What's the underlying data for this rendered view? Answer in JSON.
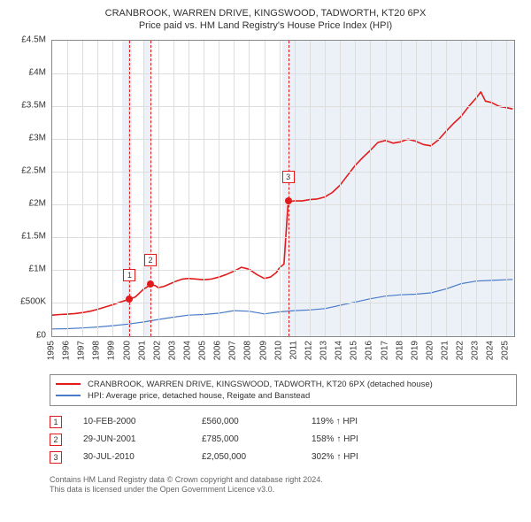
{
  "title_line1": "CRANBROOK, WARREN DRIVE, KINGSWOOD, TADWORTH, KT20 6PX",
  "title_line2": "Price paid vs. HM Land Registry's House Price Index (HPI)",
  "chart": {
    "type": "line",
    "background_color": "#ffffff",
    "grid_color": "#dddddd",
    "border_color": "#888888",
    "shade_color": "#e0e8f4",
    "x": {
      "min": 1995,
      "max": 2025.5,
      "ticks": [
        1995,
        1996,
        1997,
        1998,
        1999,
        2000,
        2001,
        2002,
        2003,
        2004,
        2005,
        2006,
        2007,
        2008,
        2009,
        2010,
        2011,
        2012,
        2013,
        2014,
        2015,
        2016,
        2017,
        2018,
        2019,
        2020,
        2021,
        2022,
        2023,
        2024,
        2025
      ]
    },
    "y": {
      "min": 0,
      "max": 4500000,
      "ticks": [
        0,
        500000,
        1000000,
        1500000,
        2000000,
        2500000,
        3000000,
        3500000,
        4000000,
        4500000
      ],
      "tick_labels": [
        "£0",
        "£500K",
        "£1M",
        "£1.5M",
        "£2M",
        "£2.5M",
        "£3M",
        "£3.5M",
        "£4M",
        "£4.5M"
      ]
    },
    "shaded_ranges": [
      [
        1999.6,
        2000.25
      ],
      [
        2001.0,
        2001.55
      ],
      [
        2010.2,
        2025.5
      ]
    ],
    "tick_label_fontsize": 10,
    "series": [
      {
        "name": "property",
        "label": "CRANBROOK, WARREN DRIVE, KINGSWOOD, TADWORTH, KT20 6PX (detached house)",
        "color": "#e11b1b",
        "width": 1.6,
        "points": [
          [
            1995.0,
            320000
          ],
          [
            1995.5,
            330000
          ],
          [
            1996.0,
            335000
          ],
          [
            1996.5,
            345000
          ],
          [
            1997.0,
            360000
          ],
          [
            1997.5,
            380000
          ],
          [
            1998.0,
            410000
          ],
          [
            1998.5,
            445000
          ],
          [
            1999.0,
            480000
          ],
          [
            1999.5,
            520000
          ],
          [
            2000.0,
            555000
          ],
          [
            2000.11,
            560000
          ],
          [
            2000.5,
            600000
          ],
          [
            2001.0,
            710000
          ],
          [
            2001.49,
            785000
          ],
          [
            2001.8,
            770000
          ],
          [
            2002.0,
            740000
          ],
          [
            2002.4,
            760000
          ],
          [
            2002.8,
            800000
          ],
          [
            2003.2,
            840000
          ],
          [
            2003.6,
            870000
          ],
          [
            2004.0,
            880000
          ],
          [
            2004.5,
            870000
          ],
          [
            2005.0,
            860000
          ],
          [
            2005.5,
            870000
          ],
          [
            2006.0,
            900000
          ],
          [
            2006.5,
            940000
          ],
          [
            2007.0,
            990000
          ],
          [
            2007.5,
            1050000
          ],
          [
            2008.0,
            1020000
          ],
          [
            2008.5,
            940000
          ],
          [
            2009.0,
            880000
          ],
          [
            2009.4,
            900000
          ],
          [
            2009.8,
            970000
          ],
          [
            2010.0,
            1040000
          ],
          [
            2010.3,
            1100000
          ],
          [
            2010.55,
            1950000
          ],
          [
            2010.58,
            2050000
          ],
          [
            2011.0,
            2060000
          ],
          [
            2011.5,
            2060000
          ],
          [
            2012.0,
            2080000
          ],
          [
            2012.5,
            2090000
          ],
          [
            2013.0,
            2120000
          ],
          [
            2013.5,
            2190000
          ],
          [
            2014.0,
            2300000
          ],
          [
            2014.5,
            2450000
          ],
          [
            2015.0,
            2600000
          ],
          [
            2015.5,
            2720000
          ],
          [
            2016.0,
            2830000
          ],
          [
            2016.5,
            2950000
          ],
          [
            2017.0,
            2980000
          ],
          [
            2017.5,
            2940000
          ],
          [
            2018.0,
            2960000
          ],
          [
            2018.5,
            3000000
          ],
          [
            2019.0,
            2970000
          ],
          [
            2019.5,
            2920000
          ],
          [
            2020.0,
            2900000
          ],
          [
            2020.5,
            2990000
          ],
          [
            2021.0,
            3120000
          ],
          [
            2021.5,
            3240000
          ],
          [
            2022.0,
            3350000
          ],
          [
            2022.5,
            3500000
          ],
          [
            2023.0,
            3630000
          ],
          [
            2023.3,
            3720000
          ],
          [
            2023.6,
            3580000
          ],
          [
            2024.0,
            3560000
          ],
          [
            2024.5,
            3500000
          ],
          [
            2025.0,
            3480000
          ],
          [
            2025.4,
            3460000
          ]
        ]
      },
      {
        "name": "hpi",
        "label": "HPI: Average price, detached house, Reigate and Banstead",
        "color": "#4a7bc8",
        "width": 1.2,
        "points": [
          [
            1995.0,
            110000
          ],
          [
            1996.0,
            115000
          ],
          [
            1997.0,
            125000
          ],
          [
            1998.0,
            140000
          ],
          [
            1999.0,
            160000
          ],
          [
            2000.0,
            185000
          ],
          [
            2001.0,
            215000
          ],
          [
            2002.0,
            255000
          ],
          [
            2003.0,
            290000
          ],
          [
            2004.0,
            320000
          ],
          [
            2005.0,
            330000
          ],
          [
            2006.0,
            350000
          ],
          [
            2007.0,
            390000
          ],
          [
            2008.0,
            380000
          ],
          [
            2009.0,
            340000
          ],
          [
            2010.0,
            370000
          ],
          [
            2011.0,
            390000
          ],
          [
            2012.0,
            400000
          ],
          [
            2013.0,
            420000
          ],
          [
            2014.0,
            470000
          ],
          [
            2015.0,
            520000
          ],
          [
            2016.0,
            570000
          ],
          [
            2017.0,
            610000
          ],
          [
            2018.0,
            630000
          ],
          [
            2019.0,
            640000
          ],
          [
            2020.0,
            660000
          ],
          [
            2021.0,
            720000
          ],
          [
            2022.0,
            800000
          ],
          [
            2023.0,
            840000
          ],
          [
            2024.0,
            850000
          ],
          [
            2025.0,
            860000
          ],
          [
            2025.4,
            865000
          ]
        ]
      }
    ],
    "sale_markers": [
      {
        "n": "1",
        "x": 2000.11,
        "y": 560000
      },
      {
        "n": "2",
        "x": 2001.49,
        "y": 785000
      },
      {
        "n": "3",
        "x": 2010.58,
        "y": 2050000
      }
    ]
  },
  "sale_points": [
    {
      "n": "1",
      "date": "10-FEB-2000",
      "price": "£560,000",
      "pct": "119% ↑ HPI"
    },
    {
      "n": "2",
      "date": "29-JUN-2001",
      "price": "£785,000",
      "pct": "158% ↑ HPI"
    },
    {
      "n": "3",
      "date": "30-JUL-2010",
      "price": "£2,050,000",
      "pct": "302% ↑ HPI"
    }
  ],
  "footnote_line1": "Contains HM Land Registry data © Crown copyright and database right 2024.",
  "footnote_line2": "This data is licensed under the Open Government Licence v3.0."
}
